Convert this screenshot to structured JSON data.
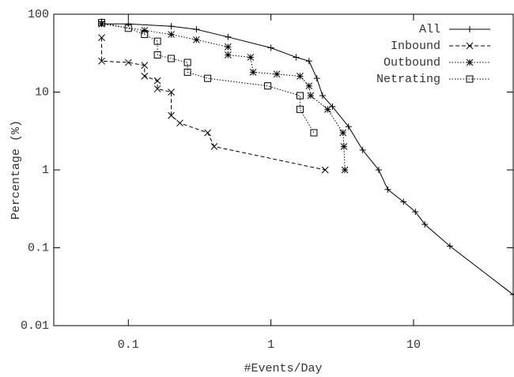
{
  "chart_data": {
    "type": "line",
    "xlabel": "#Events/Day",
    "ylabel": "Percentage (%)",
    "xscale": "log",
    "yscale": "log",
    "xlim": [
      0.03,
      50
    ],
    "ylim": [
      0.01,
      100
    ],
    "xticks": [
      0.1,
      1,
      10
    ],
    "yticks": [
      0.01,
      0.1,
      1,
      10,
      100
    ],
    "legend": "upper right",
    "series": [
      {
        "name": "All",
        "color": "#000000",
        "dash": "solid",
        "marker": "plus",
        "x": [
          0.065,
          0.065,
          0.1,
          0.2,
          0.3,
          0.5,
          1,
          1.5,
          1.85,
          2.1,
          2.3,
          2.7,
          3.5,
          4.4,
          5.7,
          6.6,
          8.5,
          10.3,
          12,
          18,
          50
        ],
        "values": [
          80,
          75,
          75,
          70,
          64,
          51,
          37,
          28,
          25,
          15,
          9,
          6.5,
          3.6,
          1.8,
          1,
          0.56,
          0.39,
          0.29,
          0.2,
          0.105,
          0.025
        ]
      },
      {
        "name": "Inbound",
        "color": "#000000",
        "dash": "dashed",
        "marker": "x",
        "x": [
          0.065,
          0.065,
          0.1,
          0.13,
          0.13,
          0.16,
          0.16,
          0.2,
          0.2,
          0.23,
          0.36,
          0.4,
          2.4
        ],
        "values": [
          50,
          25,
          24,
          22,
          16,
          14,
          11,
          10,
          5,
          4,
          3,
          2,
          1
        ]
      },
      {
        "name": "Outbound",
        "color": "#000000",
        "dash": "dotted",
        "marker": "star",
        "x": [
          0.065,
          0.13,
          0.2,
          0.3,
          0.5,
          0.5,
          0.72,
          0.75,
          1.1,
          1.6,
          1.85,
          1.9,
          2.5,
          3.2,
          3.25,
          3.3
        ],
        "values": [
          75,
          62,
          55,
          47,
          38,
          30,
          28,
          18,
          17,
          16,
          12,
          9,
          6,
          3,
          2,
          1
        ]
      },
      {
        "name": "Netrating",
        "color": "#000000",
        "dash": "dotted",
        "marker": "square",
        "x": [
          0.065,
          0.1,
          0.13,
          0.16,
          0.16,
          0.2,
          0.26,
          0.26,
          0.36,
          0.95,
          1.6,
          1.6,
          2
        ],
        "values": [
          78,
          66,
          55,
          45,
          30,
          27,
          24,
          18,
          15,
          12,
          9,
          6,
          3
        ]
      }
    ]
  }
}
